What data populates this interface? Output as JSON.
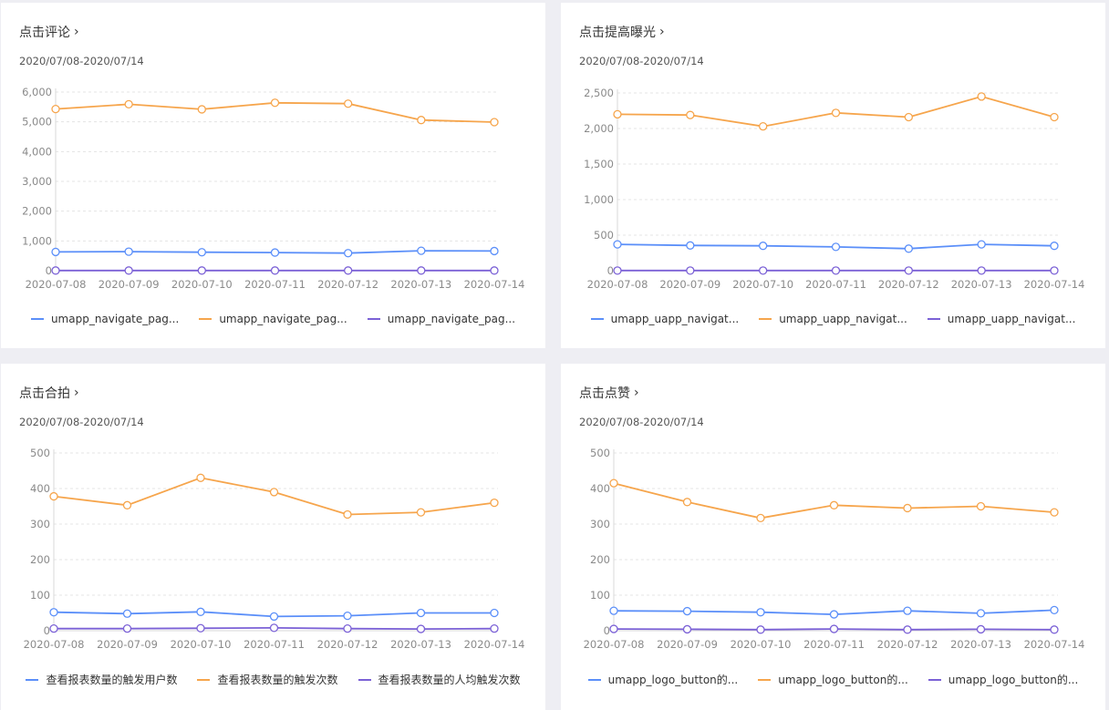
{
  "colors": {
    "blue": "#5b8ff9",
    "orange": "#f6a54c",
    "purple": "#7b61d6"
  },
  "chart_data": [
    {
      "type": "line",
      "title": "点击评论",
      "subtitle": "2020/07/08-2020/07/14",
      "categories": [
        "2020-07-08",
        "2020-07-09",
        "2020-07-10",
        "2020-07-11",
        "2020-07-12",
        "2020-07-13",
        "2020-07-14"
      ],
      "yticks": [
        "0",
        "1,000",
        "2,000",
        "3,000",
        "4,000",
        "5,000",
        "6,000"
      ],
      "ylim": [
        0,
        6000
      ],
      "grid": true,
      "legend_position": "bottom",
      "series": [
        {
          "name": "umapp_navigate_pag...",
          "color": "#5b8ff9",
          "values": [
            630,
            640,
            620,
            610,
            590,
            670,
            660
          ]
        },
        {
          "name": "umapp_navigate_pag...",
          "color": "#f6a54c",
          "values": [
            5430,
            5590,
            5420,
            5640,
            5610,
            5060,
            4990
          ]
        },
        {
          "name": "umapp_navigate_pag...",
          "color": "#7b61d6",
          "values": [
            5,
            5,
            5,
            5,
            5,
            5,
            5
          ]
        }
      ]
    },
    {
      "type": "line",
      "title": "点击提高曝光",
      "subtitle": "2020/07/08-2020/07/14",
      "categories": [
        "2020-07-08",
        "2020-07-09",
        "2020-07-10",
        "2020-07-11",
        "2020-07-12",
        "2020-07-13",
        "2020-07-14"
      ],
      "yticks": [
        "0",
        "500",
        "1,000",
        "1,500",
        "2,000",
        "2,500"
      ],
      "ylim": [
        0,
        2500
      ],
      "grid": true,
      "legend_position": "bottom",
      "series": [
        {
          "name": "umapp_uapp_navigat...",
          "color": "#5b8ff9",
          "values": [
            370,
            355,
            350,
            335,
            310,
            370,
            350
          ]
        },
        {
          "name": "umapp_uapp_navigat...",
          "color": "#f6a54c",
          "values": [
            2200,
            2190,
            2030,
            2220,
            2160,
            2450,
            2160
          ]
        },
        {
          "name": "umapp_uapp_navigat...",
          "color": "#7b61d6",
          "values": [
            2,
            2,
            2,
            2,
            2,
            2,
            2
          ]
        }
      ]
    },
    {
      "type": "line",
      "title": "点击合拍",
      "subtitle": "2020/07/08-2020/07/14",
      "categories": [
        "2020-07-08",
        "2020-07-09",
        "2020-07-10",
        "2020-07-11",
        "2020-07-12",
        "2020-07-13",
        "2020-07-14"
      ],
      "yticks": [
        "0",
        "100",
        "200",
        "300",
        "400",
        "500"
      ],
      "ylim": [
        0,
        500
      ],
      "grid": true,
      "legend_position": "bottom",
      "series": [
        {
          "name": "查看报表数量的触发用户数",
          "color": "#5b8ff9",
          "values": [
            52,
            48,
            53,
            40,
            42,
            50,
            50
          ]
        },
        {
          "name": "查看报表数量的触发次数",
          "color": "#f6a54c",
          "values": [
            378,
            353,
            430,
            390,
            327,
            333,
            360
          ]
        },
        {
          "name": "查看报表数量的人均触发次数",
          "color": "#7b61d6",
          "values": [
            6,
            6,
            7,
            8,
            6,
            5,
            6
          ]
        }
      ]
    },
    {
      "type": "line",
      "title": "点击点赞",
      "subtitle": "2020/07/08-2020/07/14",
      "categories": [
        "2020-07-08",
        "2020-07-09",
        "2020-07-10",
        "2020-07-11",
        "2020-07-12",
        "2020-07-13",
        "2020-07-14"
      ],
      "yticks": [
        "0",
        "100",
        "200",
        "300",
        "400",
        "500"
      ],
      "ylim": [
        0,
        500
      ],
      "grid": true,
      "legend_position": "bottom",
      "series": [
        {
          "name": "umapp_logo_button的...",
          "color": "#5b8ff9",
          "values": [
            56,
            55,
            52,
            46,
            56,
            49,
            58
          ]
        },
        {
          "name": "umapp_logo_button的...",
          "color": "#f6a54c",
          "values": [
            415,
            362,
            317,
            353,
            345,
            350,
            333
          ]
        },
        {
          "name": "umapp_logo_button的...",
          "color": "#7b61d6",
          "values": [
            5,
            4,
            3,
            5,
            3,
            4,
            3
          ]
        }
      ]
    }
  ]
}
